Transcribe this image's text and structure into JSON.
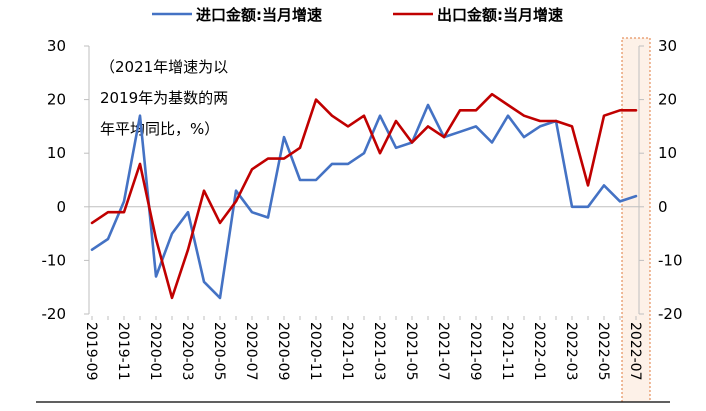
{
  "chart_data": {
    "type": "line",
    "annotation_lines": [
      "（2021年增速为以",
      "2019年为基数的两",
      "年平均同比，%）"
    ],
    "x": [
      "2019-09",
      "2019-10",
      "2019-11",
      "2019-12",
      "2020-01",
      "2020-02",
      "2020-03",
      "2020-04",
      "2020-05",
      "2020-06",
      "2020-07",
      "2020-08",
      "2020-09",
      "2020-10",
      "2020-11",
      "2020-12",
      "2021-01",
      "2021-02",
      "2021-03",
      "2021-04",
      "2021-05",
      "2021-06",
      "2021-07",
      "2021-08",
      "2021-09",
      "2021-10",
      "2021-11",
      "2021-12",
      "2022-01",
      "2022-02",
      "2022-03",
      "2022-04",
      "2022-05",
      "2022-06",
      "2022-07"
    ],
    "x_tick_labels": [
      "2019-09",
      "2019-11",
      "2020-01",
      "2020-03",
      "2020-05",
      "2020-07",
      "2020-09",
      "2020-11",
      "2021-01",
      "2021-03",
      "2021-05",
      "2021-07",
      "2021-09",
      "2021-11",
      "2022-01",
      "2022-03",
      "2022-05",
      "2022-07"
    ],
    "ylim": [
      -20,
      30
    ],
    "y_ticks": [
      -20,
      -10,
      0,
      10,
      20,
      30
    ],
    "legend_position": "top",
    "highlight_last_period": true,
    "series": [
      {
        "name": "进口金额:当月增速",
        "color": "#4472c4",
        "values": [
          -8,
          -6,
          1,
          17,
          -13,
          -5,
          -1,
          -14,
          -17,
          3,
          -1,
          -2,
          13,
          5,
          5,
          8,
          8,
          10,
          17,
          11,
          12,
          19,
          13,
          14,
          15,
          12,
          17,
          13,
          15,
          16,
          0,
          0,
          4,
          1,
          2
        ]
      },
      {
        "name": "出口金额:当月增速",
        "color": "#c00000",
        "values": [
          -3,
          -1,
          -1,
          8,
          -6,
          -17,
          -8,
          3,
          -3,
          1,
          7,
          9,
          9,
          11,
          20,
          17,
          15,
          17,
          10,
          16,
          12,
          15,
          13,
          18,
          18,
          21,
          19,
          17,
          16,
          16,
          15,
          4,
          17,
          18,
          18
        ]
      }
    ]
  }
}
